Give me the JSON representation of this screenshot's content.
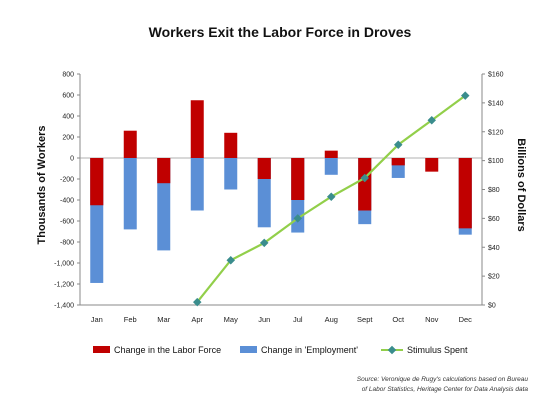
{
  "chart_data": {
    "type": "bar+line",
    "title": "Workers Exit the Labor Force in Droves",
    "categories": [
      "Jan",
      "Feb",
      "Mar",
      "Apr",
      "May",
      "Jun",
      "Jul",
      "Aug",
      "Sept",
      "Oct",
      "Nov",
      "Dec"
    ],
    "ylabel_left": "Thousands of Workers",
    "ylabel_right": "Billions of Dollars",
    "ylim_left": [
      -1400,
      800
    ],
    "ylim_right": [
      0,
      160
    ],
    "yticks_left": [
      "800",
      "600",
      "400",
      "200",
      "0",
      "-200",
      "-400",
      "-600",
      "-800",
      "-1,000",
      "-1,200",
      "-1,400"
    ],
    "yticks_right": [
      "$160",
      "$140",
      "$120",
      "$100",
      "$80",
      "$60",
      "$40",
      "$20",
      "$0"
    ],
    "series": [
      {
        "name": "Change in the Labor Force",
        "kind": "bar",
        "axis": "left",
        "values": [
          -450,
          260,
          -240,
          550,
          240,
          -200,
          -400,
          70,
          -500,
          -70,
          -130,
          -670
        ]
      },
      {
        "name": "Change in 'Employment'",
        "kind": "bar",
        "axis": "left",
        "values": [
          -1190,
          -680,
          -880,
          -500,
          -300,
          -660,
          -710,
          -160,
          -630,
          -190,
          0,
          -730
        ]
      },
      {
        "name": "Stimulus Spent",
        "kind": "line",
        "axis": "right",
        "values": [
          null,
          null,
          null,
          2,
          31,
          43,
          60,
          75,
          88,
          111,
          128,
          145
        ]
      }
    ],
    "legend": "bottom",
    "grid": false,
    "source": [
      "Source: Veronique de Rugy's calculations based on Bureau",
      "of Labor Statistics,  Heritage Center for Data Analysis data"
    ],
    "colors": {
      "labor_force": "#c00000",
      "employment": "#5b8fd6",
      "stimulus": "#92cf4a",
      "marker": "#3a8d8d"
    }
  }
}
